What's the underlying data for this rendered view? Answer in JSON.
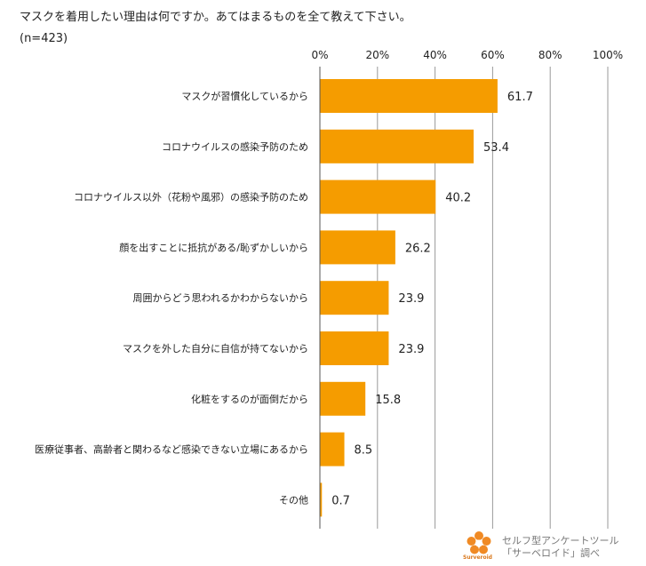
{
  "title": "マスクを着用したい理由は何ですか。あてはまるものを全て教えて下さい。",
  "subtitle": "(n=423)",
  "chart_data": {
    "type": "bar",
    "orientation": "horizontal",
    "title": "マスクを着用したい理由は何ですか。あてはまるものを全て教えて下さい。",
    "subtitle": "(n=423)",
    "categories": [
      "マスクが習慣化しているから",
      "コロナウイルスの感染予防のため",
      "コロナウイルス以外（花粉や風邪）の感染予防のため",
      "顔を出すことに抵抗がある/恥ずかしいから",
      "周囲からどう思われるかわからないから",
      "マスクを外した自分に自信が持てないから",
      "化粧をするのが面倒だから",
      "医療従事者、高齢者と関わるなど感染できない立場にあるから",
      "その他"
    ],
    "values": [
      61.7,
      53.4,
      40.2,
      26.2,
      23.9,
      23.9,
      15.8,
      8.5,
      0.7
    ],
    "value_labels": [
      "61.7",
      "53.4",
      "40.2",
      "26.2",
      "23.9",
      "23.9",
      "15.8",
      "8.5",
      "0.7"
    ],
    "xlim": [
      0,
      100
    ],
    "xticks": [
      0,
      20,
      40,
      60,
      80,
      100
    ],
    "xtick_labels": [
      "0%",
      "20%",
      "40%",
      "60%",
      "80%",
      "100%"
    ],
    "grid": true,
    "bar_color": "#f59c00",
    "grid_color": "#9a9a9a"
  },
  "credit": {
    "line1": "セルフ型アンケートツール",
    "line2": "「サーベロイド」調べ",
    "brand": "Surveroid",
    "logo_color": "#f08a24"
  }
}
